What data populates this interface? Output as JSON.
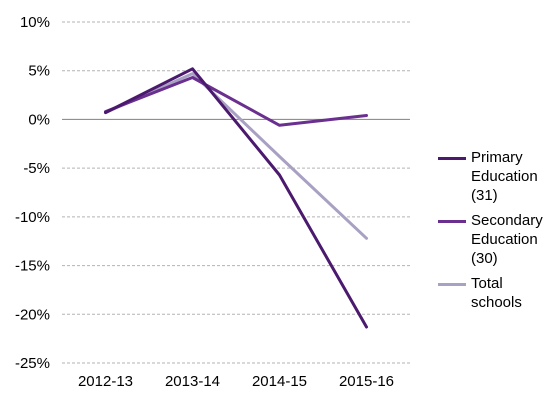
{
  "chart_data": {
    "type": "line",
    "categories": [
      "2012-13",
      "2013-14",
      "2014-15",
      "2015-16"
    ],
    "ylim": [
      -25,
      10
    ],
    "yticks": [
      10,
      5,
      0,
      -5,
      -10,
      -15,
      -20,
      -25
    ],
    "ytick_labels": [
      "10%",
      "5%",
      "0%",
      "-5%",
      "-10%",
      "-15%",
      "-20%",
      "-25%"
    ],
    "grid": true,
    "legend_position": "right",
    "series": [
      {
        "name": "Primary Education (31)",
        "label_lines": "Primary\nEducation\n(31)",
        "color": "#4b1a6e",
        "values": [
          0.7,
          5.2,
          -5.7,
          -21.3
        ]
      },
      {
        "name": "Secondary Education (30)",
        "label_lines": "Secondary\nEducation\n(30)",
        "color": "#6a2f8f",
        "values": [
          0.8,
          4.3,
          -0.6,
          0.4
        ]
      },
      {
        "name": "Total schools",
        "label_lines": "Total\nschools",
        "color": "#a9a1c4",
        "values": [
          0.7,
          4.7,
          -3.8,
          -12.2
        ]
      }
    ]
  }
}
